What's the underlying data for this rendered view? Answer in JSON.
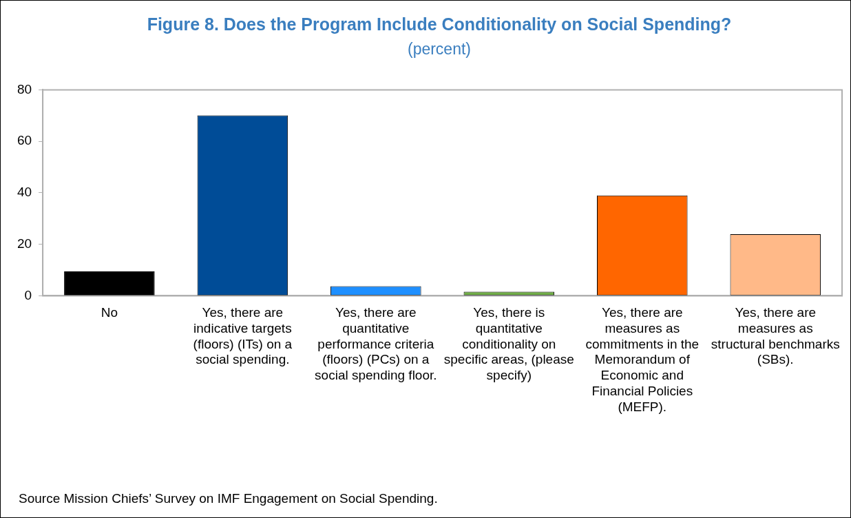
{
  "chart_data": {
    "type": "bar",
    "title": "Figure 8. Does the Program Include Conditionality on Social Spending?",
    "subtitle": "(percent)",
    "categories": [
      "No",
      "Yes, there are indicative targets (floors) (ITs) on a social spending.",
      "Yes, there are quantitative performance criteria (floors) (PCs) on a social spending floor.",
      "Yes, there is quantitative conditionality on specific areas, (please specify)",
      "Yes, there are measures as commitments in the Memorandum of Economic and Financial Policies (MEFP).",
      "Yes, there are measures as structural benchmarks (SBs)."
    ],
    "values": [
      9.5,
      70.1,
      3.7,
      1.6,
      39.0,
      23.9
    ],
    "colors": [
      "#000000",
      "#004c97",
      "#1e8fff",
      "#70ad47",
      "#ff6600",
      "#ffb988"
    ],
    "ylim": [
      0,
      80
    ],
    "yticks": [
      0,
      20,
      40,
      60,
      80
    ],
    "grid": false,
    "legend": false,
    "annotations": [
      "Source Mission Chiefs’ Survey on IMF Engagement on Social Spending."
    ]
  }
}
